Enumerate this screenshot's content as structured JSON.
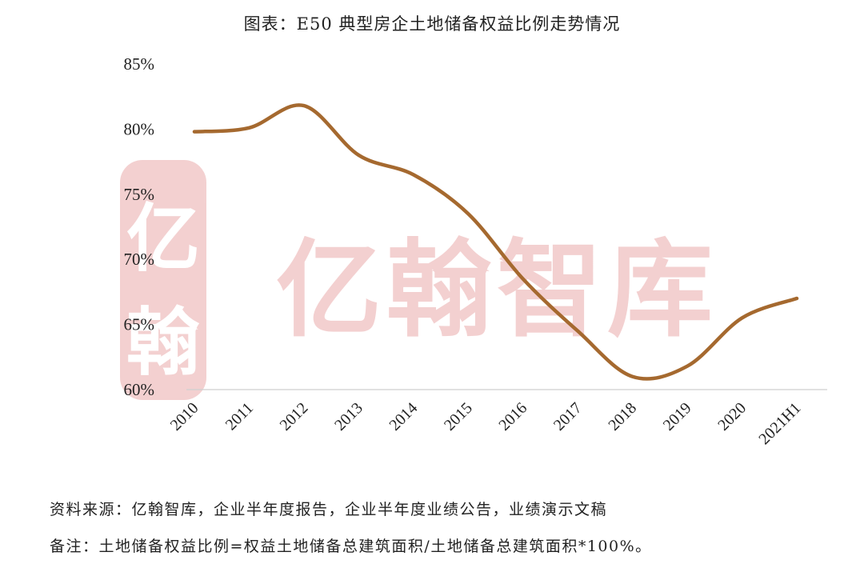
{
  "title": "图表：E50 典型房企土地储备权益比例走势情况",
  "watermark": {
    "text": "亿翰智库",
    "seal_text_top": "亿",
    "seal_text_bottom": "翰",
    "color": "#e8a3a3"
  },
  "footnotes": {
    "source": "资料来源：亿翰智库，企业半年度报告，企业半年度业绩公告，业绩演示文稿",
    "remark": "备注：土地储备权益比例=权益土地储备总建筑面积/土地储备总建筑面积*100%。"
  },
  "chart_data": {
    "type": "line",
    "title": "图表：E50 典型房企土地储备权益比例走势情况",
    "categories": [
      "2010",
      "2011",
      "2012",
      "2013",
      "2014",
      "2015",
      "2016",
      "2017",
      "2018",
      "2019",
      "2020",
      "2021H1"
    ],
    "series": [
      {
        "values": [
          79.8,
          80.1,
          81.8,
          78.0,
          76.5,
          73.5,
          68.5,
          64.5,
          61.0,
          61.8,
          65.5,
          67.0
        ],
        "color": "#a5692f"
      }
    ],
    "ylim": [
      60,
      85
    ],
    "yticks": [
      60,
      65,
      70,
      75,
      80,
      85
    ],
    "ytick_labels": [
      "60%",
      "65%",
      "70%",
      "75%",
      "80%",
      "85%"
    ],
    "grid": false,
    "legend": "none",
    "xlabel": "",
    "ylabel": ""
  }
}
